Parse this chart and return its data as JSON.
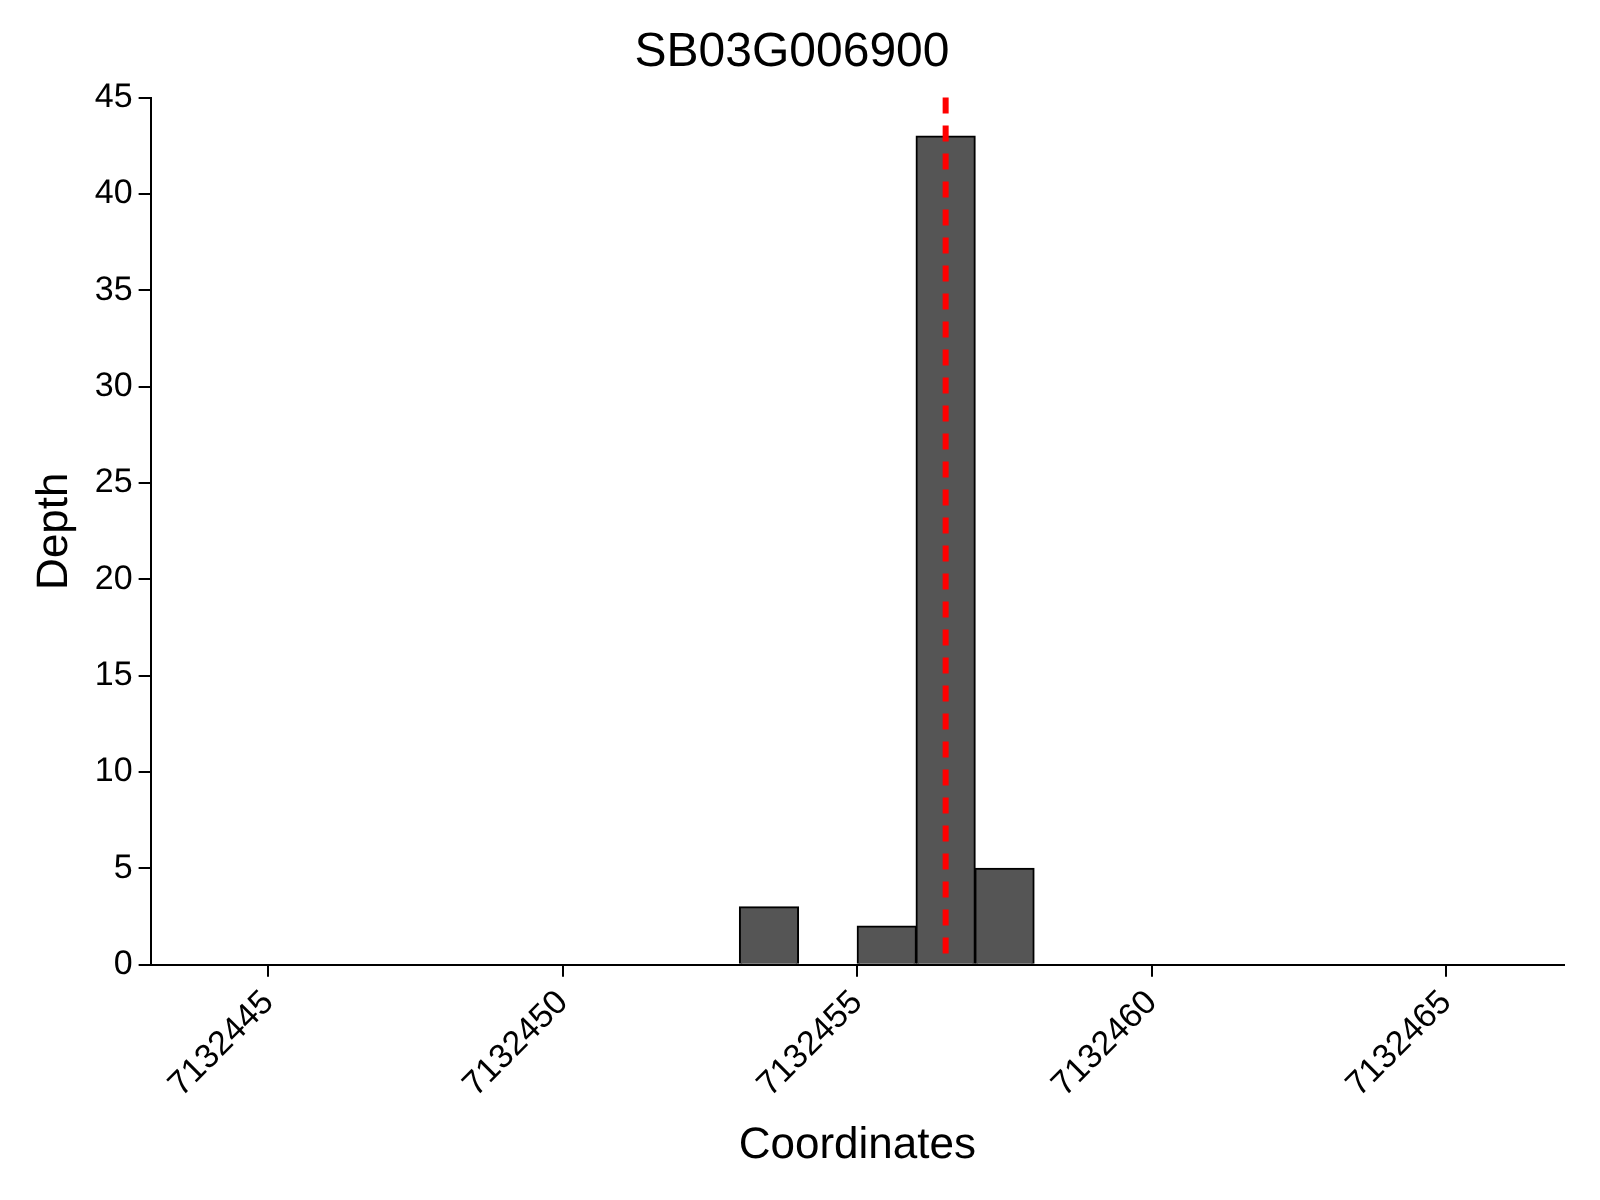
{
  "chart_data": {
    "type": "histogram",
    "title": "SB03G006900",
    "xlabel": "Coordinates",
    "ylabel": "Depth",
    "bins": [
      7132453,
      7132454,
      7132455,
      7132456,
      7132457,
      7132458
    ],
    "values": [
      3,
      0,
      2,
      43,
      5
    ],
    "color": "#555555",
    "xlim": [
      7132443,
      7132467
    ],
    "xticks": [
      7132445,
      7132450,
      7132455,
      7132460,
      7132465
    ],
    "ylim": [
      0,
      45
    ],
    "yticks": [
      0,
      5,
      10,
      15,
      20,
      25,
      30,
      35,
      40,
      45
    ],
    "ref_lines": [
      {
        "axis": "x",
        "value": 7132456.5,
        "color": "#ff0000",
        "line_style": "dashed"
      }
    ],
    "grid": false,
    "legend": false
  }
}
